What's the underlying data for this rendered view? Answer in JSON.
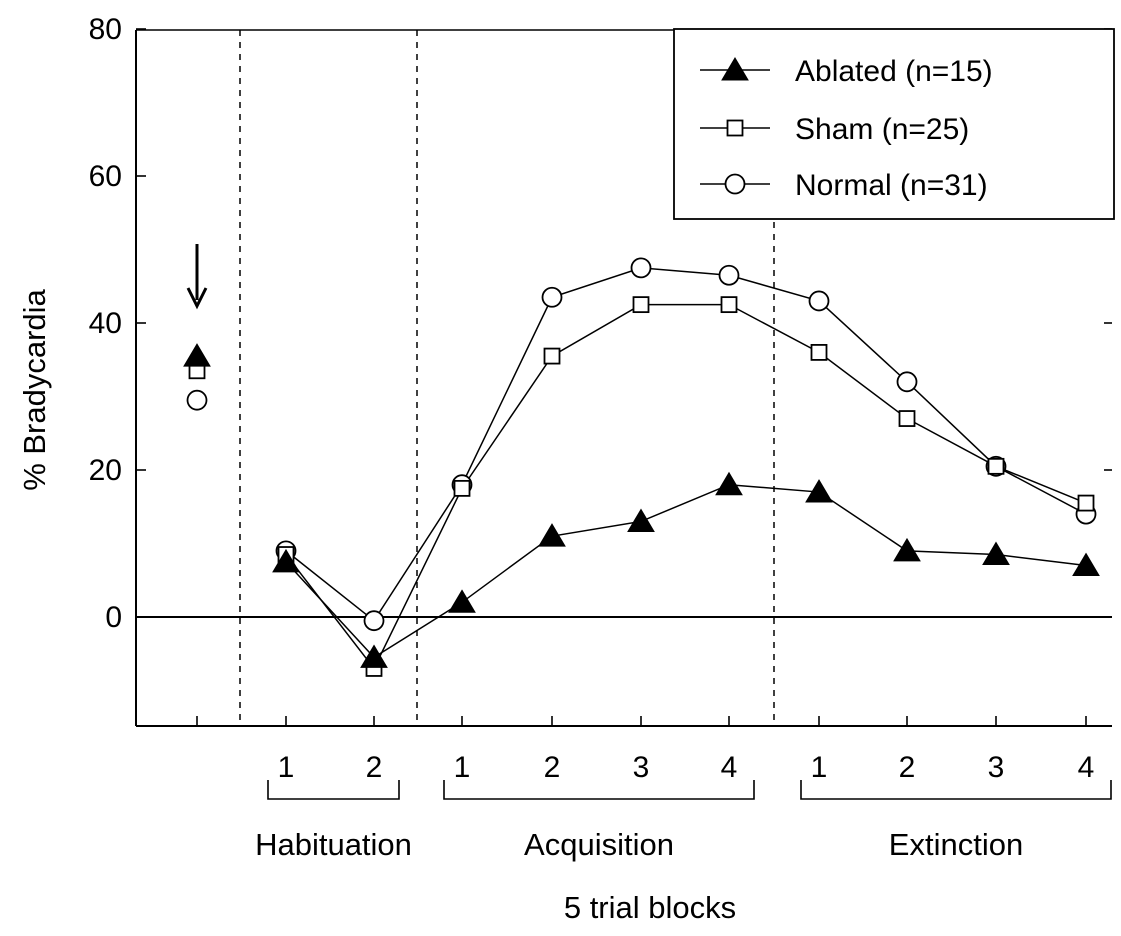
{
  "chart_data": {
    "type": "line",
    "title": "",
    "xlabel": "5 trial blocks",
    "ylabel": "% Bradycardia",
    "ylim": [
      -15,
      80
    ],
    "yticks": [
      0,
      20,
      40,
      60,
      80
    ],
    "grid": false,
    "legend_position": "top-right",
    "slots": [
      "",
      "1",
      "2",
      "1",
      "2",
      "3",
      "4",
      "1",
      "2",
      "3",
      "4"
    ],
    "phases": [
      {
        "label": "Habituation",
        "from": 1,
        "to": 2
      },
      {
        "label": "Acquisition",
        "from": 3,
        "to": 6
      },
      {
        "label": "Extinction",
        "from": 7,
        "to": 10
      }
    ],
    "baseline_slot": 0,
    "baseline_marker": "arrow",
    "series": [
      {
        "name": "Ablated (n=15)",
        "marker": "filled-triangle",
        "baseline": 35.5,
        "values": [
          null,
          7.5,
          -5.5,
          2,
          11,
          13,
          18,
          17,
          9,
          8.5,
          7
        ]
      },
      {
        "name": "Sham (n=25)",
        "marker": "open-square",
        "baseline": 33.5,
        "values": [
          null,
          8.5,
          -7,
          17.5,
          35.5,
          42.5,
          42.5,
          36,
          27,
          20.5,
          15.5
        ]
      },
      {
        "name": "Normal (n=31)",
        "marker": "open-circle",
        "baseline": 29.5,
        "values": [
          null,
          9,
          -0.5,
          18,
          43.5,
          47.5,
          46.5,
          43,
          32,
          20.5,
          14
        ]
      }
    ]
  }
}
